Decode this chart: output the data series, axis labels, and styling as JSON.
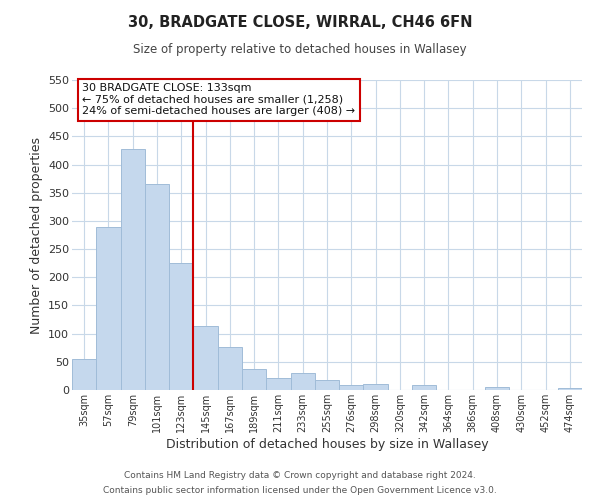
{
  "title": "30, BRADGATE CLOSE, WIRRAL, CH46 6FN",
  "subtitle": "Size of property relative to detached houses in Wallasey",
  "xlabel": "Distribution of detached houses by size in Wallasey",
  "ylabel": "Number of detached properties",
  "bar_labels": [
    "35sqm",
    "57sqm",
    "79sqm",
    "101sqm",
    "123sqm",
    "145sqm",
    "167sqm",
    "189sqm",
    "211sqm",
    "233sqm",
    "255sqm",
    "276sqm",
    "298sqm",
    "320sqm",
    "342sqm",
    "364sqm",
    "386sqm",
    "408sqm",
    "430sqm",
    "452sqm",
    "474sqm"
  ],
  "bar_values": [
    55,
    290,
    428,
    365,
    225,
    113,
    76,
    38,
    22,
    30,
    18,
    8,
    10,
    0,
    9,
    0,
    0,
    5,
    0,
    0,
    4
  ],
  "bar_color": "#c5d8ed",
  "bar_edge_color": "#a0bcd8",
  "vline_x_idx": 4,
  "vline_color": "#cc0000",
  "ylim": [
    0,
    550
  ],
  "yticks": [
    0,
    50,
    100,
    150,
    200,
    250,
    300,
    350,
    400,
    450,
    500,
    550
  ],
  "annotation_title": "30 BRADGATE CLOSE: 133sqm",
  "annotation_line1": "← 75% of detached houses are smaller (1,258)",
  "annotation_line2": "24% of semi-detached houses are larger (408) →",
  "annotation_box_color": "#cc0000",
  "footer1": "Contains HM Land Registry data © Crown copyright and database right 2024.",
  "footer2": "Contains public sector information licensed under the Open Government Licence v3.0.",
  "background_color": "#ffffff",
  "grid_color": "#c8d8e8"
}
